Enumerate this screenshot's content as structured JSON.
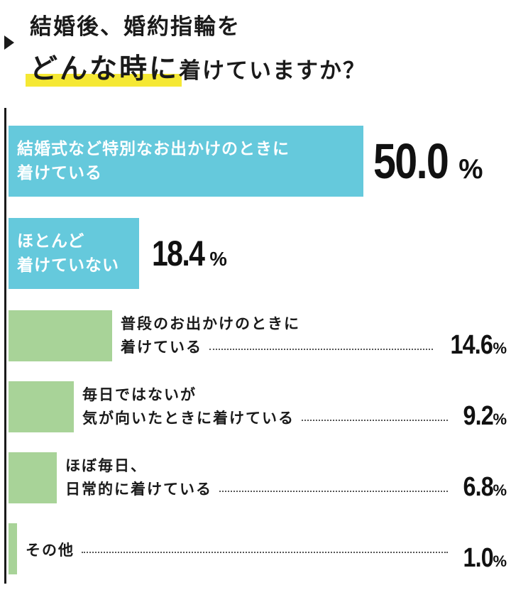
{
  "title": {
    "line1": "結婚後、婚約指輪を",
    "highlight": "どんな時に",
    "rest": "着けていますか？"
  },
  "chart_data": {
    "type": "bar",
    "orientation": "horizontal",
    "unit": "%",
    "colors": {
      "top": "#65c9dc",
      "other": "#a8d398",
      "highlight": "#f5e834"
    },
    "items": [
      {
        "label_lines": [
          "結婚式など特別なお出かけのときに",
          "着けている"
        ],
        "value": 50.0,
        "display": "50.0"
      },
      {
        "label_lines": [
          "ほとんど",
          "着けていない"
        ],
        "value": 18.4,
        "display": "18.4"
      },
      {
        "label_lines": [
          "普段のお出かけのときに",
          "着けている"
        ],
        "value": 14.6,
        "display": "14.6"
      },
      {
        "label_lines": [
          "毎日ではないが",
          "気が向いたときに着けている"
        ],
        "value": 9.2,
        "display": "9.2"
      },
      {
        "label_lines": [
          "ほぼ毎日、",
          "日常的に着けている"
        ],
        "value": 6.8,
        "display": "6.8"
      },
      {
        "label_lines": [
          "その他"
        ],
        "value": 1.0,
        "display": "1.0"
      }
    ]
  }
}
